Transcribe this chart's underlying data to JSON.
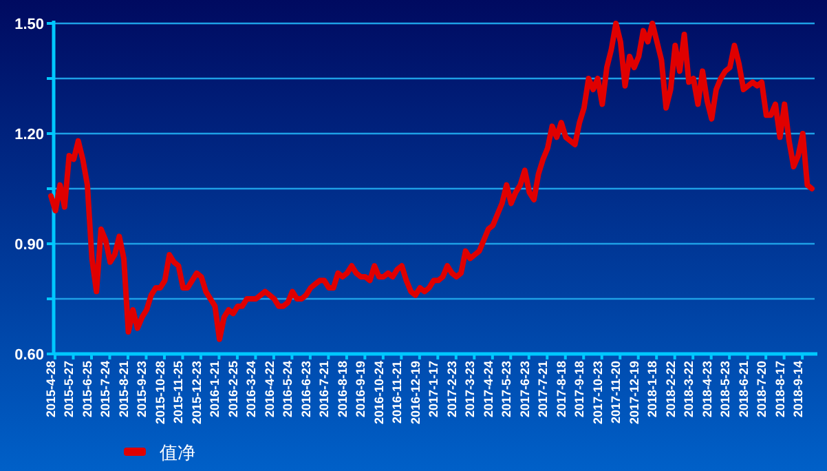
{
  "chart_data": {
    "type": "line",
    "categories": [
      "2015-4-28",
      null,
      null,
      null,
      "2015-5-27",
      null,
      null,
      null,
      "2015-6-25",
      null,
      null,
      null,
      "2015-7-24",
      null,
      null,
      null,
      "2015-8-21",
      null,
      null,
      null,
      "2015-9-23",
      null,
      null,
      null,
      "2015-10-28",
      null,
      null,
      null,
      "2015-11-25",
      null,
      null,
      null,
      "2015-12-23",
      null,
      null,
      null,
      "2016-1-21",
      null,
      null,
      null,
      "2016-2-25",
      null,
      null,
      null,
      "2016-3-24",
      null,
      null,
      null,
      "2016-4-22",
      null,
      null,
      null,
      "2016-5-24",
      null,
      null,
      null,
      "2016-6-23",
      null,
      null,
      null,
      "2016-7-21",
      null,
      null,
      null,
      "2016-8-18",
      null,
      null,
      null,
      "2016-9-19",
      null,
      null,
      null,
      "2016-10-24",
      null,
      null,
      null,
      "2016-11-21",
      null,
      null,
      null,
      "2016-12-19",
      null,
      null,
      null,
      "2017-1-17",
      null,
      null,
      null,
      "2017-2-23",
      null,
      null,
      null,
      "2017-3-23",
      null,
      null,
      null,
      "2017-4-24",
      null,
      null,
      null,
      "2017-5-23",
      null,
      null,
      null,
      "2017-6-23",
      null,
      null,
      null,
      "2017-7-21",
      null,
      null,
      null,
      "2017-8-18",
      null,
      null,
      null,
      "2017-9-18",
      null,
      null,
      null,
      "2017-10-23",
      null,
      null,
      null,
      "2017-11-20",
      null,
      null,
      null,
      "2017-12-19",
      null,
      null,
      null,
      "2018-1-18",
      null,
      null,
      null,
      "2018-2-22",
      null,
      null,
      null,
      "2018-3-22",
      null,
      null,
      null,
      "2018-4-23",
      null,
      null,
      null,
      "2018-5-23",
      null,
      null,
      null,
      "2018-6-21",
      null,
      null,
      null,
      "2018-7-20",
      null,
      null,
      null,
      "2018-8-17",
      null,
      null,
      null,
      "2018-9-14",
      null,
      null,
      null
    ],
    "series": [
      {
        "name": "值净",
        "color": "#e00000",
        "values": [
          1.03,
          0.99,
          1.06,
          1.0,
          1.14,
          1.13,
          1.18,
          1.13,
          1.06,
          0.86,
          0.77,
          0.94,
          0.91,
          0.85,
          0.87,
          0.92,
          0.86,
          0.66,
          0.72,
          0.67,
          0.7,
          0.72,
          0.76,
          0.78,
          0.78,
          0.8,
          0.87,
          0.85,
          0.84,
          0.78,
          0.78,
          0.8,
          0.82,
          0.81,
          0.77,
          0.75,
          0.73,
          0.64,
          0.7,
          0.72,
          0.71,
          0.73,
          0.73,
          0.75,
          0.75,
          0.75,
          0.76,
          0.77,
          0.76,
          0.75,
          0.73,
          0.73,
          0.74,
          0.77,
          0.75,
          0.75,
          0.76,
          0.78,
          0.79,
          0.8,
          0.8,
          0.78,
          0.78,
          0.82,
          0.81,
          0.82,
          0.84,
          0.82,
          0.81,
          0.81,
          0.8,
          0.84,
          0.81,
          0.81,
          0.82,
          0.81,
          0.83,
          0.84,
          0.8,
          0.77,
          0.76,
          0.78,
          0.77,
          0.78,
          0.8,
          0.8,
          0.81,
          0.84,
          0.82,
          0.81,
          0.82,
          0.88,
          0.86,
          0.87,
          0.88,
          0.91,
          0.94,
          0.95,
          0.98,
          1.01,
          1.06,
          1.01,
          1.04,
          1.06,
          1.1,
          1.04,
          1.02,
          1.09,
          1.13,
          1.16,
          1.22,
          1.19,
          1.23,
          1.19,
          1.18,
          1.17,
          1.23,
          1.27,
          1.35,
          1.32,
          1.35,
          1.28,
          1.38,
          1.43,
          1.5,
          1.45,
          1.33,
          1.41,
          1.38,
          1.41,
          1.48,
          1.45,
          1.5,
          1.45,
          1.4,
          1.27,
          1.32,
          1.44,
          1.37,
          1.47,
          1.34,
          1.35,
          1.28,
          1.37,
          1.29,
          1.24,
          1.32,
          1.35,
          1.37,
          1.38,
          1.44,
          1.39,
          1.32,
          1.33,
          1.34,
          1.33,
          1.34,
          1.25,
          1.25,
          1.28,
          1.19,
          1.28,
          1.18,
          1.11,
          1.14,
          1.2,
          1.06,
          1.05
        ]
      }
    ],
    "ylim": [
      0.6,
      1.5
    ],
    "yticks": [
      {
        "value": 0.6,
        "label": "0.60"
      },
      {
        "value": 0.75,
        "label": null
      },
      {
        "value": 0.9,
        "label": "0.90"
      },
      {
        "value": 1.05,
        "label": null
      },
      {
        "value": 1.2,
        "label": "1.20"
      },
      {
        "value": 1.35,
        "label": null
      },
      {
        "value": 1.5,
        "label": "1.50"
      }
    ],
    "grid": "y",
    "legend": "bottom left",
    "marker": "none",
    "line_style": "solid"
  }
}
